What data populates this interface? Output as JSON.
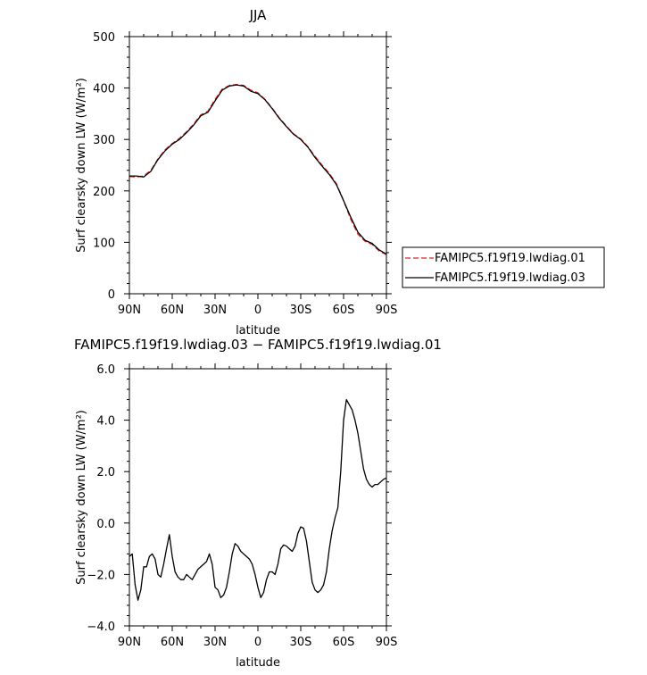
{
  "chart_data": [
    {
      "type": "line",
      "title": "JJA",
      "xlabel": "latitude",
      "ylabel": "Surf clearsky down LW (W/m²)",
      "xlim": [
        90,
        -90
      ],
      "ylim": [
        0,
        500
      ],
      "xticks": [
        90,
        60,
        30,
        0,
        -30,
        -60,
        -90
      ],
      "xtick_labels": [
        "90N",
        "60N",
        "30N",
        "0",
        "30S",
        "60S",
        "90S"
      ],
      "yticks": [
        0,
        100,
        200,
        300,
        400,
        500
      ],
      "ytick_labels": [
        "0",
        "100",
        "200",
        "300",
        "400",
        "500"
      ],
      "legend_position": "right",
      "x": [
        90,
        85,
        80,
        75,
        70,
        65,
        60,
        55,
        50,
        45,
        40,
        35,
        30,
        25,
        20,
        15,
        10,
        5,
        0,
        -5,
        -10,
        -15,
        -20,
        -25,
        -30,
        -35,
        -40,
        -45,
        -50,
        -55,
        -60,
        -65,
        -70,
        -75,
        -80,
        -85,
        -90
      ],
      "series": [
        {
          "name": "FAMIPC5.f19f19.lwdiag.01",
          "color": "#e8201e",
          "dash": "6,3",
          "values": [
            228,
            227,
            229,
            240,
            262,
            280,
            292,
            302,
            315,
            330,
            348,
            355,
            378,
            398,
            405,
            407,
            405,
            396,
            391,
            378,
            361,
            342,
            326,
            311,
            301,
            286,
            267,
            250,
            234,
            214,
            181,
            145,
            116,
            102,
            96,
            83,
            76
          ]
        },
        {
          "name": "FAMIPC5.f19f19.lwdiag.03",
          "color": "#000000",
          "dash": "",
          "values": [
            229,
            229,
            227,
            238,
            261,
            278,
            291,
            300,
            313,
            328,
            346,
            353,
            375,
            396,
            404,
            406,
            404,
            394,
            389,
            377,
            360,
            341,
            325,
            310,
            300,
            285,
            265,
            248,
            232,
            212,
            181,
            149,
            120,
            104,
            98,
            85,
            77
          ]
        }
      ]
    },
    {
      "type": "line",
      "title": "FAMIPC5.f19f19.lwdiag.03 − FAMIPC5.f19f19.lwdiag.01",
      "xlabel": "latitude",
      "ylabel": "Surf clearsky down LW (W/m²)",
      "xlim": [
        90,
        -90
      ],
      "ylim": [
        -4,
        6
      ],
      "xticks": [
        90,
        60,
        30,
        0,
        -30,
        -60,
        -90
      ],
      "xtick_labels": [
        "90N",
        "60N",
        "30N",
        "0",
        "30S",
        "60S",
        "90S"
      ],
      "yticks": [
        -4,
        -2,
        0,
        2,
        4,
        6
      ],
      "ytick_labels": [
        "−4.0",
        "−2.0",
        "0.0",
        "2.0",
        "4.0",
        "6.0"
      ],
      "x": [
        90,
        88,
        86,
        84,
        82,
        80,
        78,
        76,
        74,
        72,
        70,
        68,
        66,
        64,
        62,
        60,
        58,
        56,
        54,
        52,
        50,
        48,
        46,
        44,
        42,
        40,
        38,
        36,
        34,
        32,
        30,
        28,
        26,
        24,
        22,
        20,
        18,
        16,
        14,
        12,
        10,
        8,
        6,
        4,
        2,
        0,
        -2,
        -4,
        -6,
        -8,
        -10,
        -12,
        -14,
        -16,
        -18,
        -20,
        -22,
        -24,
        -26,
        -28,
        -30,
        -32,
        -34,
        -36,
        -38,
        -40,
        -42,
        -44,
        -46,
        -48,
        -50,
        -52,
        -54,
        -56,
        -58,
        -60,
        -62,
        -64,
        -66,
        -68,
        -70,
        -72,
        -74,
        -76,
        -78,
        -80,
        -82,
        -84,
        -86,
        -88,
        -90
      ],
      "series": [
        {
          "name": "",
          "color": "#000000",
          "values": [
            -1.3,
            -1.2,
            -2.4,
            -3.0,
            -2.6,
            -1.7,
            -1.7,
            -1.3,
            -1.2,
            -1.4,
            -2.0,
            -2.1,
            -1.6,
            -1.0,
            -0.45,
            -1.3,
            -1.9,
            -2.1,
            -2.2,
            -2.2,
            -2.0,
            -2.1,
            -2.2,
            -2.0,
            -1.8,
            -1.7,
            -1.6,
            -1.5,
            -1.2,
            -1.6,
            -2.5,
            -2.6,
            -2.9,
            -2.8,
            -2.5,
            -1.9,
            -1.2,
            -0.8,
            -0.9,
            -1.1,
            -1.2,
            -1.3,
            -1.4,
            -1.6,
            -2.0,
            -2.5,
            -2.9,
            -2.7,
            -2.2,
            -1.9,
            -1.9,
            -2.0,
            -1.6,
            -1.0,
            -0.85,
            -0.9,
            -1.0,
            -1.1,
            -0.9,
            -0.4,
            -0.15,
            -0.2,
            -0.7,
            -1.5,
            -2.3,
            -2.6,
            -2.7,
            -2.6,
            -2.4,
            -1.9,
            -1.0,
            -0.3,
            0.2,
            0.6,
            2.0,
            4.0,
            4.8,
            4.6,
            4.4,
            4.0,
            3.5,
            2.8,
            2.1,
            1.7,
            1.5,
            1.4,
            1.5,
            1.5,
            1.6,
            1.7,
            1.75
          ]
        }
      ]
    }
  ]
}
